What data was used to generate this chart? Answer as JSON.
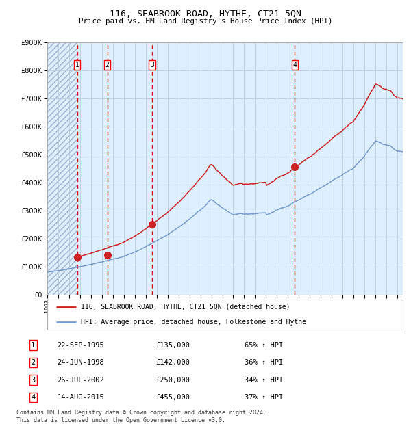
{
  "title": "116, SEABROOK ROAD, HYTHE, CT21 5QN",
  "subtitle": "Price paid vs. HM Land Registry's House Price Index (HPI)",
  "sales": [
    {
      "date_num": 1995.73,
      "price": 135000,
      "label": "1"
    },
    {
      "date_num": 1998.48,
      "price": 142000,
      "label": "2"
    },
    {
      "date_num": 2002.57,
      "price": 250000,
      "label": "3"
    },
    {
      "date_num": 2015.62,
      "price": 455000,
      "label": "4"
    }
  ],
  "legend_entries": [
    "116, SEABROOK ROAD, HYTHE, CT21 5QN (detached house)",
    "HPI: Average price, detached house, Folkestone and Hythe"
  ],
  "table_rows": [
    [
      "1",
      "22-SEP-1995",
      "£135,000",
      "65% ↑ HPI"
    ],
    [
      "2",
      "24-JUN-1998",
      "£142,000",
      "36% ↑ HPI"
    ],
    [
      "3",
      "26-JUL-2002",
      "£250,000",
      "34% ↑ HPI"
    ],
    [
      "4",
      "14-AUG-2015",
      "£455,000",
      "37% ↑ HPI"
    ]
  ],
  "footer": "Contains HM Land Registry data © Crown copyright and database right 2024.\nThis data is licensed under the Open Government Licence v3.0.",
  "hpi_line_color": "#7799cc",
  "price_line_color": "#cc2222",
  "dot_color": "#cc2222",
  "vline_color": "#dd0000",
  "background_color": "#ddeeff",
  "ylim": [
    0,
    900000
  ],
  "xlim_start": 1993.0,
  "xlim_end": 2025.5
}
